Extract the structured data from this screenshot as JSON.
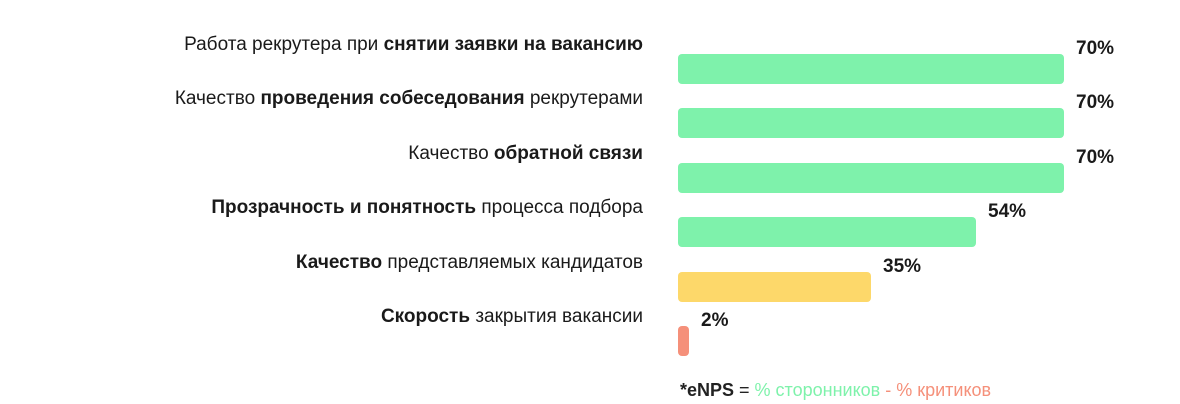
{
  "chart_data": {
    "type": "bar",
    "orientation": "horizontal",
    "title": "",
    "xlabel": "",
    "ylabel": "",
    "xlim": [
      0,
      70
    ],
    "grid": false,
    "legend": "none",
    "rows": [
      {
        "label_parts": [
          {
            "text": "Работа рекрутера при ",
            "bold": false
          },
          {
            "text": "снятии заявки на вакансию",
            "bold": true
          }
        ],
        "value": 70,
        "value_label": "70%",
        "color": "#7ef2ab"
      },
      {
        "label_parts": [
          {
            "text": "Качество ",
            "bold": false
          },
          {
            "text": "проведения собеседования",
            "bold": true
          },
          {
            "text": " рекрутерами",
            "bold": false
          }
        ],
        "value": 70,
        "value_label": "70%",
        "color": "#7ef2ab"
      },
      {
        "label_parts": [
          {
            "text": "Качество ",
            "bold": false
          },
          {
            "text": "обратной связи",
            "bold": true
          }
        ],
        "value": 70,
        "value_label": "70%",
        "color": "#7ef2ab"
      },
      {
        "label_parts": [
          {
            "text": "Прозрачность и понятность",
            "bold": true
          },
          {
            "text": " процесса подбора",
            "bold": false
          }
        ],
        "value": 54,
        "value_label": "54%",
        "color": "#7ef2ab"
      },
      {
        "label_parts": [
          {
            "text": "Качество",
            "bold": true
          },
          {
            "text": " представляемых кандидатов",
            "bold": false
          }
        ],
        "value": 35,
        "value_label": "35%",
        "color": "#fdd86a"
      },
      {
        "label_parts": [
          {
            "text": "Скорость",
            "bold": true
          },
          {
            "text": " закрытия вакансии",
            "bold": false
          }
        ],
        "value": 2,
        "value_label": "2%",
        "color": "#f5907a"
      }
    ]
  },
  "footnote": {
    "key": "*eNPS",
    "equals": " = ",
    "positive": "% сторонников",
    "separator": " - ",
    "negative": "% критиков",
    "positive_color": "#7ef2ab",
    "negative_color": "#f5907a"
  }
}
